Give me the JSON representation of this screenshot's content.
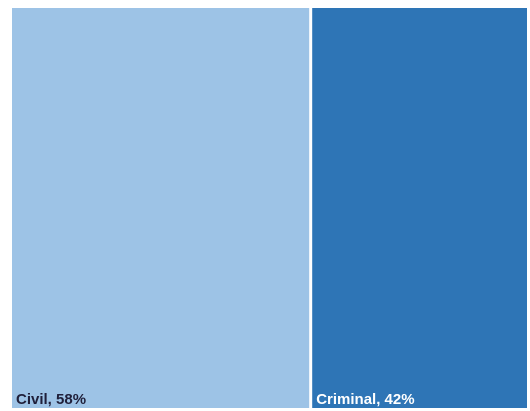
{
  "chart_data": {
    "type": "treemap",
    "segments": [
      {
        "name": "Civil",
        "value": 58,
        "label": "Civil, 58%",
        "color": "#9dc3e6",
        "label_color": "#1f1f3a"
      },
      {
        "name": "Criminal",
        "value": 42,
        "label": "Criminal, 42%",
        "color": "#2e75b6",
        "label_color": "#ffffff"
      }
    ],
    "title": "",
    "legend": "none",
    "separator_color": "#ffffff"
  }
}
